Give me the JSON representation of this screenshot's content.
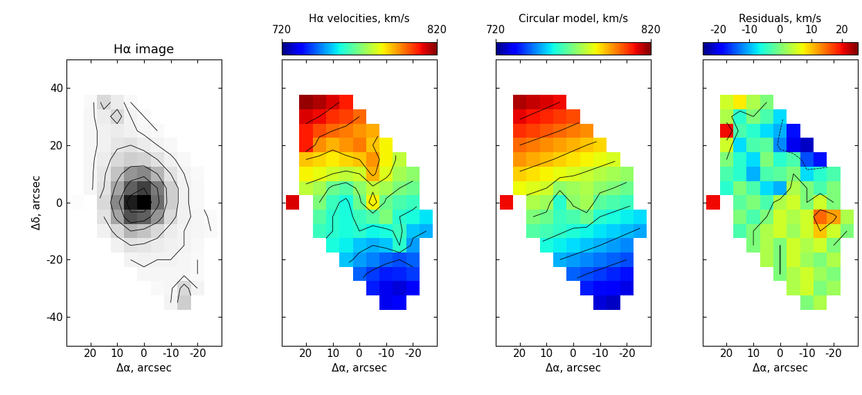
{
  "chart_data": [
    {
      "type": "heatmap",
      "title": "Hα image",
      "color": "Greys",
      "color_range": [
        0,
        100
      ],
      "contour_levels": [
        5,
        10,
        20,
        40,
        60,
        80
      ],
      "xlabel": "Δα, arcsec",
      "ylabel": "Δδ, arcsec",
      "xlim": [
        29,
        -29
      ],
      "ylim": [
        -50,
        50
      ],
      "xticks": [
        20,
        10,
        0,
        -10,
        -20
      ],
      "yticks": [
        -40,
        -20,
        0,
        20,
        40
      ],
      "x": [
        25,
        20,
        15,
        10,
        5,
        0,
        -5,
        -10,
        -15,
        -20,
        -25
      ],
      "y": [
        35,
        30,
        25,
        20,
        15,
        10,
        5,
        0,
        -5,
        -10,
        -15,
        -20,
        -25,
        -30,
        -35
      ],
      "cells": [
        [
          null,
          5,
          25,
          15,
          5,
          null,
          null,
          null,
          null,
          null,
          null
        ],
        [
          null,
          8,
          15,
          25,
          10,
          5,
          null,
          null,
          null,
          null,
          null
        ],
        [
          null,
          8,
          12,
          15,
          12,
          8,
          5,
          null,
          null,
          null,
          null
        ],
        [
          null,
          8,
          12,
          18,
          20,
          15,
          10,
          6,
          null,
          null,
          null
        ],
        [
          null,
          8,
          15,
          25,
          30,
          28,
          20,
          12,
          6,
          null,
          null
        ],
        [
          null,
          8,
          18,
          35,
          50,
          55,
          40,
          20,
          10,
          5,
          null
        ],
        [
          null,
          8,
          20,
          45,
          70,
          80,
          60,
          30,
          12,
          6,
          null
        ],
        [
          3,
          null,
          25,
          55,
          90,
          100,
          65,
          30,
          12,
          6,
          null
        ],
        [
          null,
          null,
          20,
          45,
          75,
          70,
          50,
          25,
          12,
          8,
          4
        ],
        [
          null,
          null,
          12,
          25,
          40,
          35,
          25,
          15,
          10,
          8,
          5
        ],
        [
          null,
          null,
          null,
          12,
          20,
          18,
          15,
          12,
          10,
          6,
          null
        ],
        [
          null,
          null,
          null,
          null,
          10,
          12,
          10,
          10,
          8,
          5,
          null
        ],
        [
          null,
          null,
          null,
          null,
          null,
          8,
          8,
          8,
          8,
          5,
          null
        ],
        [
          null,
          null,
          null,
          null,
          null,
          null,
          5,
          8,
          25,
          10,
          null
        ],
        [
          null,
          null,
          null,
          null,
          null,
          null,
          null,
          10,
          30,
          null,
          null
        ]
      ]
    },
    {
      "type": "heatmap",
      "colorbar_label": "Hα velocities, km/s",
      "color": "jet",
      "colorbar_range": [
        720,
        820
      ],
      "colorbar_ticks": [
        720,
        820
      ],
      "contour_levels": [
        740,
        750,
        760,
        770,
        780,
        790,
        800,
        810
      ],
      "xlabel": "Δα, arcsec",
      "tick_labels": "x",
      "xlim": [
        29,
        -29
      ],
      "ylim": [
        -50,
        50
      ],
      "xticks": [
        20,
        10,
        0,
        -10,
        -20
      ],
      "yticks": [
        -40,
        -20,
        0,
        20,
        40
      ],
      "x": [
        25,
        20,
        15,
        10,
        5,
        0,
        -5,
        -10,
        -15,
        -20,
        -25
      ],
      "y": [
        35,
        30,
        25,
        20,
        15,
        10,
        5,
        0,
        -5,
        -10,
        -15,
        -20,
        -25,
        -30,
        -35
      ],
      "cells": [
        [
          null,
          818,
          816,
          812,
          808,
          null,
          null,
          null,
          null,
          null,
          null
        ],
        [
          null,
          812,
          810,
          806,
          804,
          800,
          null,
          null,
          null,
          null,
          null
        ],
        [
          null,
          808,
          803,
          800,
          798,
          795,
          793,
          null,
          null,
          null,
          null
        ],
        [
          null,
          808,
          796,
          792,
          795,
          798,
          790,
          785,
          null,
          null,
          null
        ],
        [
          null,
          790,
          788,
          786,
          788,
          790,
          795,
          785,
          778,
          null,
          null
        ],
        [
          null,
          785,
          783,
          780,
          778,
          780,
          792,
          782,
          775,
          772,
          null
        ],
        [
          null,
          778,
          775,
          768,
          765,
          772,
          778,
          775,
          770,
          768,
          null
        ],
        [
          812,
          null,
          770,
          762,
          758,
          768,
          785,
          768,
          764,
          762,
          null
        ],
        [
          null,
          null,
          765,
          760,
          758,
          762,
          765,
          770,
          760,
          758,
          755
        ],
        [
          null,
          null,
          762,
          760,
          758,
          760,
          757,
          758,
          762,
          752,
          750
        ],
        [
          null,
          null,
          null,
          758,
          756,
          752,
          750,
          752,
          760,
          748,
          null
        ],
        [
          null,
          null,
          null,
          null,
          752,
          748,
          745,
          742,
          740,
          742,
          null
        ],
        [
          null,
          null,
          null,
          null,
          null,
          742,
          738,
          735,
          736,
          738,
          null
        ],
        [
          null,
          null,
          null,
          null,
          null,
          null,
          735,
          730,
          728,
          732,
          null
        ],
        [
          null,
          null,
          null,
          null,
          null,
          null,
          null,
          730,
          732,
          null,
          null
        ]
      ]
    },
    {
      "type": "heatmap",
      "colorbar_label": "Circular model, km/s",
      "color": "jet",
      "colorbar_range": [
        720,
        820
      ],
      "colorbar_ticks": [
        720,
        820
      ],
      "contour_levels": [
        740,
        750,
        760,
        770,
        780,
        790,
        800,
        810
      ],
      "xlabel": "Δα, arcsec",
      "tick_labels": "x",
      "xlim": [
        29,
        -29
      ],
      "ylim": [
        -50,
        50
      ],
      "xticks": [
        20,
        10,
        0,
        -10,
        -20
      ],
      "yticks": [
        -40,
        -20,
        0,
        20,
        40
      ],
      "x": [
        25,
        20,
        15,
        10,
        5,
        0,
        -5,
        -10,
        -15,
        -20,
        -25
      ],
      "y": [
        35,
        30,
        25,
        20,
        15,
        10,
        5,
        0,
        -5,
        -10,
        -15,
        -20,
        -25,
        -30,
        -35
      ],
      "cells": [
        [
          null,
          816,
          814,
          812,
          810,
          null,
          null,
          null,
          null,
          null,
          null
        ],
        [
          null,
          811,
          809,
          807,
          805,
          803,
          null,
          null,
          null,
          null,
          null
        ],
        [
          null,
          806,
          804,
          802,
          800,
          798,
          796,
          null,
          null,
          null,
          null
        ],
        [
          null,
          800,
          798,
          796,
          794,
          792,
          790,
          788,
          null,
          null,
          null
        ],
        [
          null,
          795,
          793,
          791,
          789,
          787,
          785,
          783,
          781,
          null,
          null
        ],
        [
          null,
          789,
          787,
          785,
          783,
          781,
          779,
          777,
          775,
          773,
          null
        ],
        [
          null,
          784,
          782,
          780,
          772,
          774,
          776,
          772,
          770,
          768,
          null
        ],
        [
          810,
          null,
          776,
          774,
          760,
          772,
          775,
          766,
          764,
          762,
          null
        ],
        [
          null,
          null,
          770,
          768,
          762,
          764,
          768,
          760,
          758,
          756,
          754
        ],
        [
          null,
          null,
          765,
          763,
          761,
          759,
          757,
          755,
          753,
          751,
          749
        ],
        [
          null,
          null,
          null,
          758,
          756,
          754,
          752,
          750,
          748,
          746,
          null
        ],
        [
          null,
          null,
          null,
          null,
          750,
          748,
          746,
          744,
          742,
          740,
          null
        ],
        [
          null,
          null,
          null,
          null,
          null,
          742,
          740,
          738,
          736,
          734,
          null
        ],
        [
          null,
          null,
          null,
          null,
          null,
          null,
          735,
          733,
          731,
          729,
          null
        ],
        [
          null,
          null,
          null,
          null,
          null,
          null,
          null,
          728,
          726,
          null,
          null
        ]
      ]
    },
    {
      "type": "heatmap",
      "colorbar_label": "Residuals, km/s",
      "color": "jet",
      "colorbar_range": [
        -25,
        25
      ],
      "colorbar_ticks": [
        -20,
        -10,
        0,
        10,
        20
      ],
      "contour_levels": [
        -10,
        0,
        10
      ],
      "xlabel": "Δα, arcsec",
      "tick_labels": "x",
      "xlim": [
        29,
        -29
      ],
      "ylim": [
        -50,
        50
      ],
      "xticks": [
        20,
        10,
        0,
        -10,
        -20
      ],
      "yticks": [
        -40,
        -20,
        0,
        20,
        40
      ],
      "x": [
        25,
        20,
        15,
        10,
        5,
        0,
        -5,
        -10,
        -15,
        -20,
        -25
      ],
      "y": [
        35,
        30,
        25,
        20,
        15,
        10,
        5,
        0,
        -5,
        -10,
        -15,
        -20,
        -25,
        -30,
        -35
      ],
      "cells": [
        [
          null,
          5,
          8,
          3,
          0,
          null,
          null,
          null,
          null,
          null,
          null
        ],
        [
          null,
          3,
          -5,
          0,
          -3,
          -8,
          null,
          null,
          null,
          null,
          null
        ],
        [
          null,
          20,
          -3,
          -5,
          -8,
          -10,
          -18,
          null,
          null,
          null,
          null
        ],
        [
          null,
          5,
          -8,
          -3,
          -2,
          -12,
          -20,
          -22,
          null,
          null,
          null
        ],
        [
          null,
          0,
          -5,
          -8,
          0,
          -5,
          -3,
          -15,
          -18,
          null,
          null
        ],
        [
          null,
          -3,
          -5,
          -10,
          -3,
          -2,
          0,
          -8,
          -5,
          -3,
          null
        ],
        [
          null,
          -5,
          0,
          -3,
          -8,
          -10,
          3,
          0,
          -3,
          0,
          null
        ],
        [
          20,
          null,
          -2,
          0,
          -3,
          3,
          5,
          0,
          5,
          0,
          null
        ],
        [
          null,
          null,
          0,
          -3,
          0,
          5,
          3,
          5,
          15,
          12,
          3
        ],
        [
          null,
          null,
          -3,
          0,
          3,
          5,
          2,
          5,
          10,
          5,
          0
        ],
        [
          null,
          null,
          null,
          0,
          3,
          0,
          5,
          3,
          5,
          0,
          null
        ],
        [
          null,
          null,
          null,
          null,
          3,
          0,
          5,
          2,
          0,
          3,
          null
        ],
        [
          null,
          null,
          null,
          null,
          null,
          0,
          3,
          5,
          2,
          0,
          null
        ],
        [
          null,
          null,
          null,
          null,
          null,
          null,
          3,
          5,
          0,
          2,
          null
        ],
        [
          null,
          null,
          null,
          null,
          null,
          null,
          null,
          0,
          3,
          null,
          null
        ]
      ]
    }
  ]
}
